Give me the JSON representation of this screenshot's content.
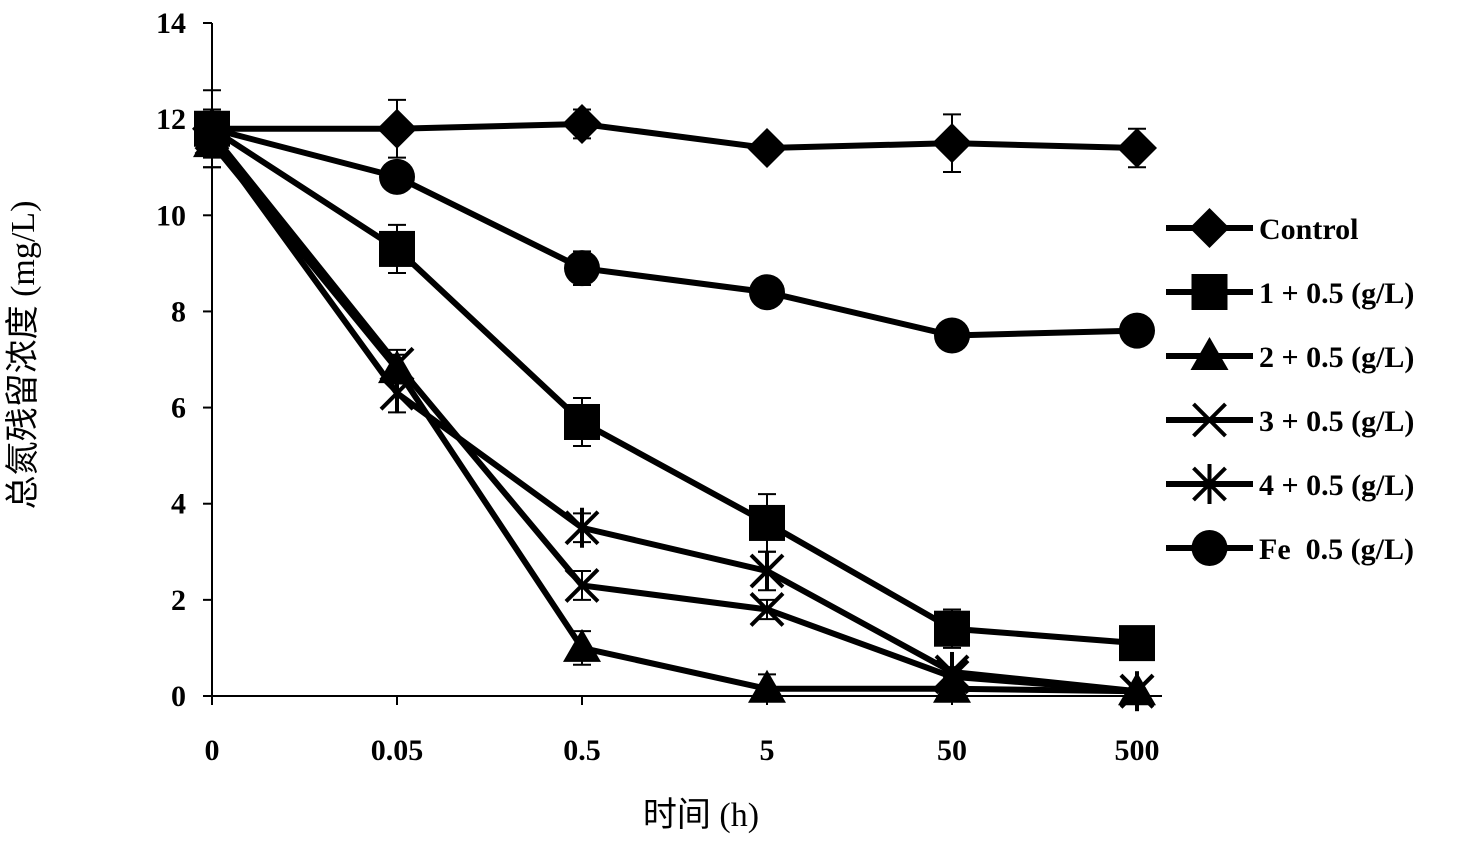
{
  "chart_data": {
    "type": "line",
    "title": "",
    "xlabel": "时间 (h)",
    "ylabel": "总氮残留浓度 (mg/L)",
    "categories": [
      "0",
      "0.05",
      "0.5",
      "5",
      "50",
      "500"
    ],
    "ylim": [
      0,
      14
    ],
    "yticks": [
      "0",
      "2",
      "4",
      "6",
      "8",
      "10",
      "12",
      "14"
    ],
    "grid": false,
    "legend_position": "right",
    "colors": {
      "line": "#000000",
      "background": "#ffffff"
    },
    "series": [
      {
        "name": "Control",
        "marker": "diamond",
        "values": [
          11.8,
          11.8,
          11.9,
          11.4,
          11.5,
          11.4
        ],
        "errors": [
          0.8,
          0.6,
          0.3,
          0.2,
          0.6,
          0.4
        ]
      },
      {
        "name": "1 + 0.5 (g/L)",
        "marker": "square",
        "values": [
          11.8,
          9.3,
          5.7,
          3.6,
          1.4,
          1.1
        ],
        "errors": [
          0.4,
          0.5,
          0.5,
          0.6,
          0.4,
          0.1
        ]
      },
      {
        "name": "2 + 0.5 (g/L)",
        "marker": "triangle",
        "values": [
          11.5,
          6.8,
          1.0,
          0.15,
          0.15,
          0.1
        ],
        "errors": [
          0.5,
          0.3,
          0.35,
          0.3,
          0.1,
          0.05
        ]
      },
      {
        "name": "3 + 0.5 (g/L)",
        "marker": "x",
        "values": [
          11.7,
          6.9,
          2.3,
          1.8,
          0.4,
          0.1
        ],
        "errors": [
          0.4,
          0.3,
          0.3,
          0.2,
          0.1,
          0.05
        ]
      },
      {
        "name": "4 + 0.5 (g/L)",
        "marker": "star",
        "values": [
          11.6,
          6.3,
          3.5,
          2.6,
          0.5,
          0.1
        ],
        "errors": [
          0.4,
          0.4,
          0.3,
          0.4,
          0.1,
          0.05
        ]
      },
      {
        "name": "Fe  0.5 (g/L)",
        "marker": "circle",
        "values": [
          11.8,
          10.8,
          8.9,
          8.4,
          7.5,
          7.6
        ],
        "errors": [
          0.4,
          0.3,
          0.35,
          0.25,
          0.1,
          0.1
        ]
      }
    ]
  }
}
